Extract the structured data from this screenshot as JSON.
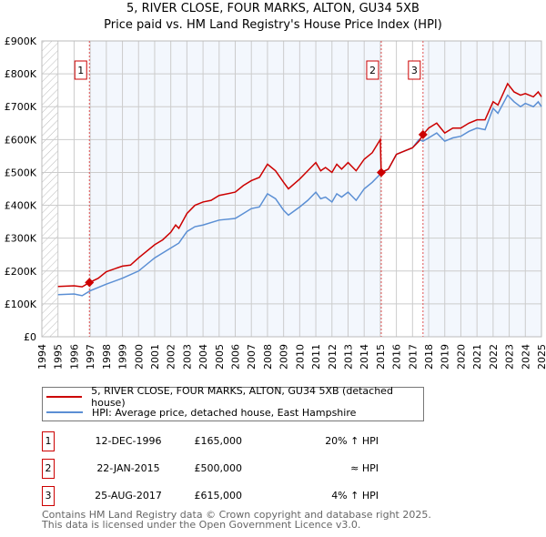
{
  "title": "5, RIVER CLOSE, FOUR MARKS, ALTON, GU34 5XB",
  "subtitle": "Price paid vs. HM Land Registry's House Price Index (HPI)",
  "chart_data": {
    "type": "line",
    "xlim": [
      1994,
      2025
    ],
    "ylim": [
      0,
      900000
    ],
    "x_ticks": [
      "1994",
      "1995",
      "1996",
      "1997",
      "1998",
      "1999",
      "2000",
      "2001",
      "2002",
      "2003",
      "2004",
      "2005",
      "2006",
      "2007",
      "2008",
      "2009",
      "2010",
      "2011",
      "2012",
      "2013",
      "2014",
      "2015",
      "2016",
      "2017",
      "2018",
      "2019",
      "2020",
      "2021",
      "2022",
      "2023",
      "2024",
      "2025"
    ],
    "y_ticks": [
      {
        "v": 0,
        "label": "£0"
      },
      {
        "v": 100000,
        "label": "£100K"
      },
      {
        "v": 200000,
        "label": "£200K"
      },
      {
        "v": 300000,
        "label": "£300K"
      },
      {
        "v": 400000,
        "label": "£400K"
      },
      {
        "v": 500000,
        "label": "£500K"
      },
      {
        "v": 600000,
        "label": "£600K"
      },
      {
        "v": 700000,
        "label": "£700K"
      },
      {
        "v": 800000,
        "label": "£800K"
      },
      {
        "v": 900000,
        "label": "£900K"
      }
    ],
    "grid": true,
    "series": [
      {
        "name": "5, RIVER CLOSE, FOUR MARKS, ALTON, GU34 5XB (detached house)",
        "color": "#cc0000",
        "x": [
          1995,
          1996,
          1996.5,
          1996.95,
          1997.5,
          1998,
          1999,
          1999.5,
          2000,
          2001,
          2001.5,
          2002,
          2002.3,
          2002.5,
          2003,
          2003.5,
          2004,
          2004.5,
          2005,
          2006,
          2006.5,
          2007,
          2007.5,
          2008,
          2008.5,
          2009,
          2009.3,
          2010,
          2010.5,
          2011,
          2011.3,
          2011.6,
          2012,
          2012.3,
          2012.6,
          2013,
          2013.5,
          2014,
          2014.5,
          2015,
          2015.06,
          2015.5,
          2016,
          2016.5,
          2017,
          2017.4,
          2017.65,
          2018,
          2018.5,
          2019,
          2019.5,
          2020,
          2020.5,
          2021,
          2021.5,
          2022,
          2022.3,
          2022.9,
          2023.3,
          2023.7,
          2024,
          2024.5,
          2024.8,
          2025
        ],
        "y": [
          153000,
          155000,
          152000,
          165000,
          178000,
          198000,
          215000,
          218000,
          240000,
          280000,
          295000,
          318000,
          340000,
          330000,
          375000,
          400000,
          410000,
          415000,
          430000,
          440000,
          460000,
          475000,
          485000,
          525000,
          505000,
          470000,
          450000,
          480000,
          505000,
          530000,
          505000,
          515000,
          500000,
          525000,
          510000,
          530000,
          505000,
          540000,
          560000,
          600000,
          500000,
          510000,
          555000,
          565000,
          575000,
          595000,
          615000,
          635000,
          650000,
          620000,
          635000,
          635000,
          650000,
          660000,
          660000,
          715000,
          705000,
          770000,
          745000,
          735000,
          740000,
          730000,
          745000,
          730000
        ]
      },
      {
        "name": "HPI: Average price, detached house, East Hampshire",
        "color": "#5b8fd4",
        "x": [
          1995,
          1996,
          1996.5,
          1997,
          1998,
          1999,
          2000,
          2001,
          2002,
          2002.5,
          2003,
          2003.5,
          2004,
          2005,
          2006,
          2006.5,
          2007,
          2007.5,
          2008,
          2008.5,
          2009,
          2009.3,
          2010,
          2010.5,
          2011,
          2011.3,
          2011.6,
          2012,
          2012.3,
          2012.6,
          2013,
          2013.5,
          2014,
          2014.5,
          2015,
          2015.5,
          2016,
          2016.5,
          2017,
          2017.4,
          2017.65,
          2018,
          2018.5,
          2019,
          2019.5,
          2020,
          2020.5,
          2021,
          2021.5,
          2022,
          2022.3,
          2022.9,
          2023.3,
          2023.7,
          2024,
          2024.5,
          2024.8,
          2025
        ],
        "y": [
          128000,
          130000,
          125000,
          140000,
          160000,
          178000,
          200000,
          240000,
          270000,
          285000,
          320000,
          335000,
          340000,
          355000,
          360000,
          375000,
          390000,
          395000,
          435000,
          420000,
          385000,
          370000,
          395000,
          415000,
          440000,
          420000,
          425000,
          410000,
          435000,
          425000,
          440000,
          415000,
          450000,
          470000,
          495000,
          510000,
          555000,
          565000,
          575000,
          600000,
          595000,
          605000,
          620000,
          595000,
          605000,
          610000,
          625000,
          635000,
          630000,
          695000,
          680000,
          735000,
          715000,
          700000,
          710000,
          700000,
          715000,
          700000
        ]
      }
    ],
    "sales": [
      {
        "n": "1",
        "x": 1996.95,
        "y": 165000,
        "date": "12-DEC-1996",
        "price": "£165,000",
        "hpi": "20% ↑ HPI"
      },
      {
        "n": "2",
        "x": 2015.06,
        "y": 500000,
        "date": "22-JAN-2015",
        "price": "£500,000",
        "hpi": "≈ HPI"
      },
      {
        "n": "3",
        "x": 2017.65,
        "y": 615000,
        "date": "25-AUG-2017",
        "price": "£615,000",
        "hpi": "4% ↑ HPI"
      }
    ],
    "legend_placement": "bottom"
  },
  "footer": [
    "Contains HM Land Registry data © Crown copyright and database right 2025.",
    "This data is licensed under the Open Government Licence v3.0."
  ]
}
